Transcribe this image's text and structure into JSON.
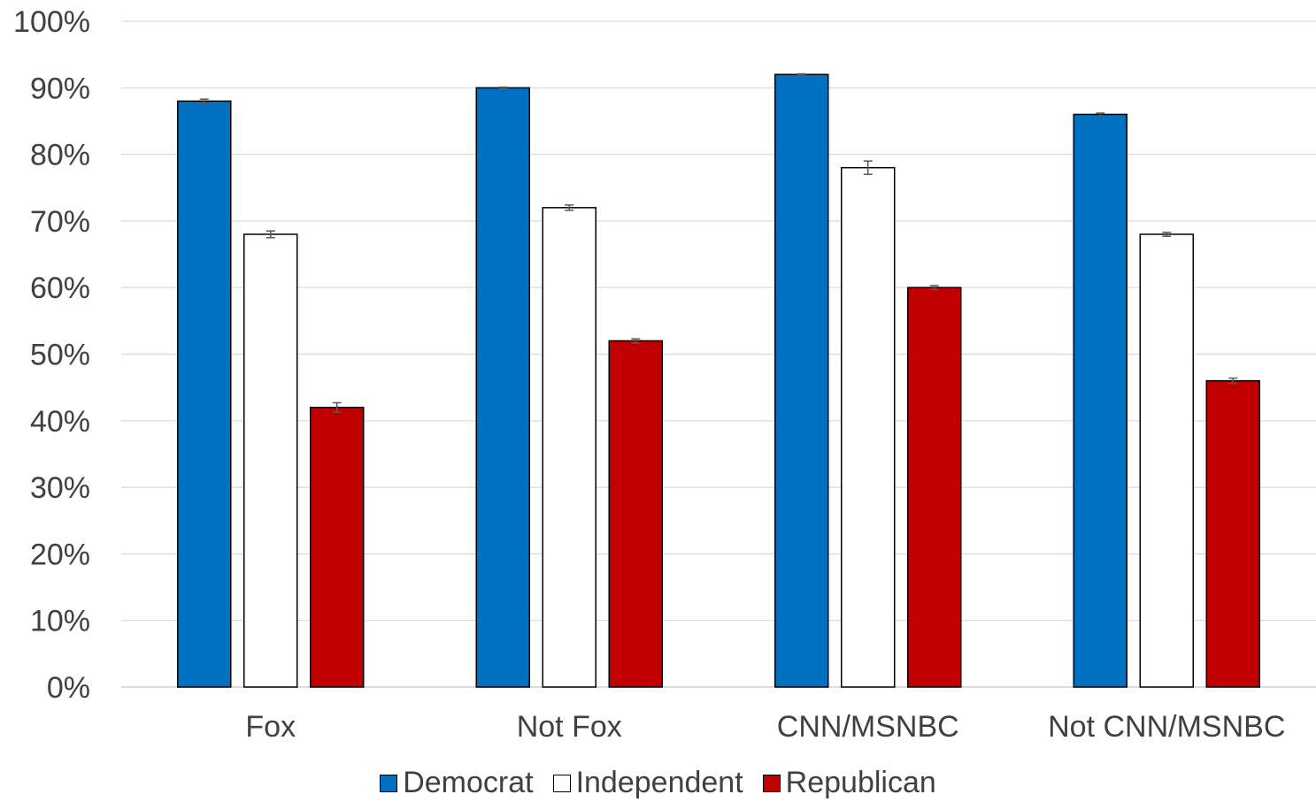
{
  "chart_data": {
    "type": "bar",
    "title": "",
    "xlabel": "",
    "ylabel": "",
    "ylim": [
      0,
      100
    ],
    "y_ticks": [
      "0%",
      "10%",
      "20%",
      "30%",
      "40%",
      "50%",
      "60%",
      "70%",
      "80%",
      "90%",
      "100%"
    ],
    "y_format": "percent",
    "grid": true,
    "legend_position": "bottom",
    "categories": [
      "Fox",
      "Not Fox",
      "CNN/MSNBC",
      "Not CNN/MSNBC"
    ],
    "series": [
      {
        "name": "Democrat",
        "color": "#0070C0",
        "values": [
          88,
          90,
          92,
          86
        ],
        "error": [
          0.3,
          0.1,
          0.1,
          0.2
        ]
      },
      {
        "name": "Independent",
        "color": "#FFFFFF",
        "values": [
          68,
          72,
          78,
          68
        ],
        "error": [
          0.5,
          0.4,
          1.0,
          0.3
        ]
      },
      {
        "name": "Republican",
        "color": "#C00000",
        "values": [
          42,
          52,
          60,
          46
        ],
        "error": [
          0.7,
          0.3,
          0.3,
          0.4
        ]
      }
    ]
  }
}
